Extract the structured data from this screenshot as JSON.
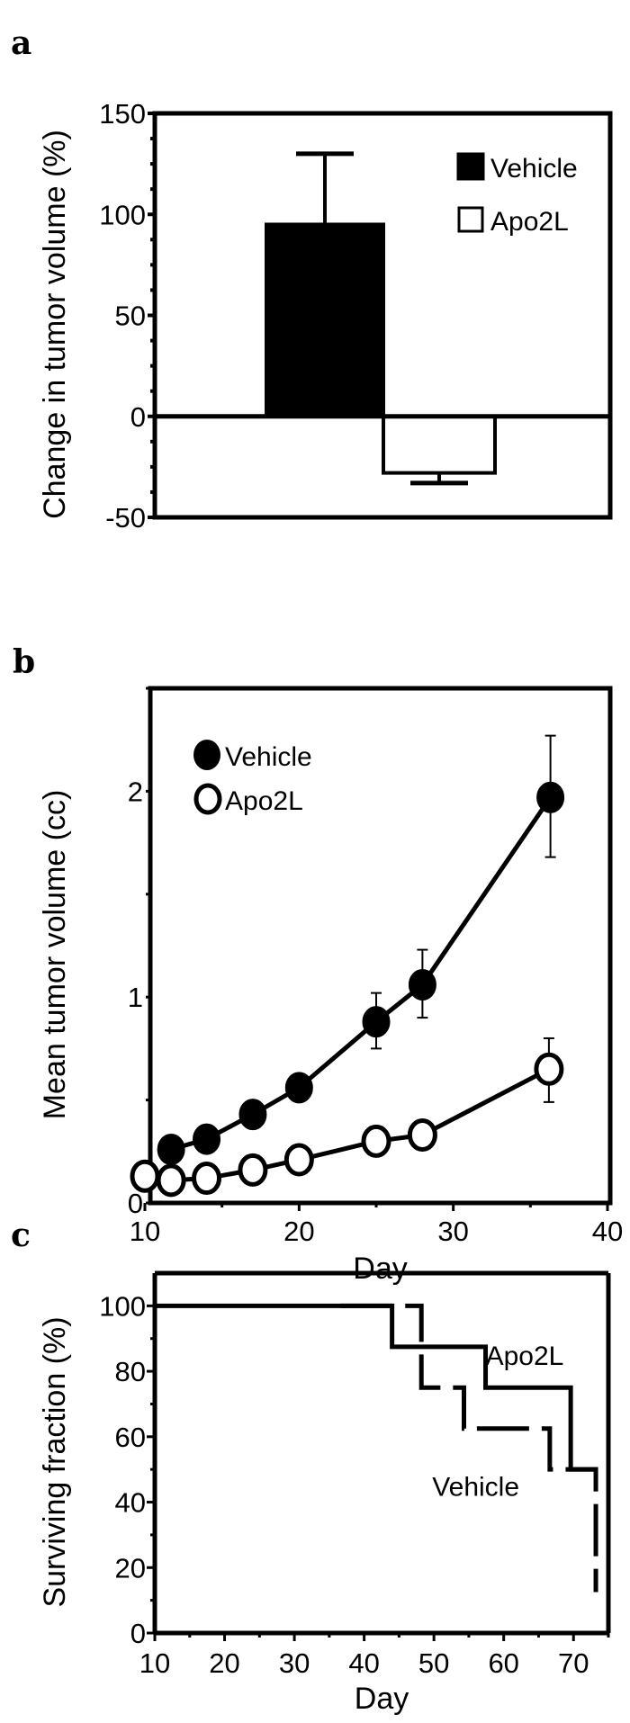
{
  "chart_data": [
    {
      "panel_label": "a",
      "type": "bar",
      "ylabel": "Change in tumor volume (%)",
      "xlabel": "",
      "ylim": [
        -50,
        150
      ],
      "yticks": [
        -50,
        0,
        50,
        100,
        150
      ],
      "legend_placement": "top-right",
      "series": [
        {
          "name": "Vehicle",
          "value": 95,
          "error_upper": 130,
          "fill": "#000000"
        },
        {
          "name": "Apo2L",
          "value": -28,
          "error_lower": -33,
          "fill": "#ffffff"
        }
      ]
    },
    {
      "panel_label": "b",
      "type": "line",
      "xlabel": "Day",
      "ylabel": "Mean tumor volume (cc)",
      "xlim": [
        10,
        40
      ],
      "ylim": [
        0,
        2.5
      ],
      "xticks": [
        10,
        20,
        30,
        40
      ],
      "yticks": [
        0,
        1,
        2
      ],
      "legend_placement": "top-left",
      "series": [
        {
          "name": "Vehicle",
          "marker": "filled-circle",
          "x": [
            11.7,
            14,
            17,
            20,
            25,
            28,
            36.3
          ],
          "y": [
            0.26,
            0.31,
            0.43,
            0.56,
            0.88,
            1.06,
            1.97
          ],
          "err_low": [
            null,
            null,
            null,
            null,
            0.75,
            0.9,
            1.68
          ],
          "err_high": [
            null,
            null,
            null,
            null,
            1.02,
            1.23,
            2.27
          ]
        },
        {
          "name": "Apo2L",
          "marker": "open-circle",
          "x": [
            10,
            11.7,
            14,
            17,
            20,
            25,
            28,
            36.2
          ],
          "y": [
            0.13,
            0.11,
            0.12,
            0.16,
            0.21,
            0.3,
            0.33,
            0.65
          ],
          "err_low": [
            null,
            null,
            null,
            null,
            null,
            null,
            null,
            0.49
          ],
          "err_high": [
            null,
            null,
            null,
            null,
            null,
            null,
            null,
            0.8
          ]
        }
      ]
    },
    {
      "panel_label": "c",
      "type": "line",
      "subtype": "step",
      "xlabel": "Day",
      "ylabel": "Surviving fraction (%)",
      "xlim": [
        10,
        75
      ],
      "ylim": [
        0,
        110
      ],
      "xticks": [
        10,
        20,
        30,
        40,
        50,
        60,
        70
      ],
      "yticks": [
        0,
        20,
        40,
        60,
        80,
        100
      ],
      "series": [
        {
          "name": "Apo2L",
          "style": "solid",
          "x": [
            10,
            44,
            57.4,
            69.6,
            73.5
          ],
          "y": [
            100,
            87.5,
            75,
            50,
            50
          ],
          "label_at": [
            63,
            82
          ]
        },
        {
          "name": "Vehicle",
          "style": "dashed",
          "x": [
            36.6,
            48.2,
            54.3,
            66.6,
            73.2
          ],
          "y": [
            100,
            75,
            62.5,
            50,
            12.5
          ],
          "label_at": [
            56,
            42
          ]
        }
      ]
    }
  ]
}
